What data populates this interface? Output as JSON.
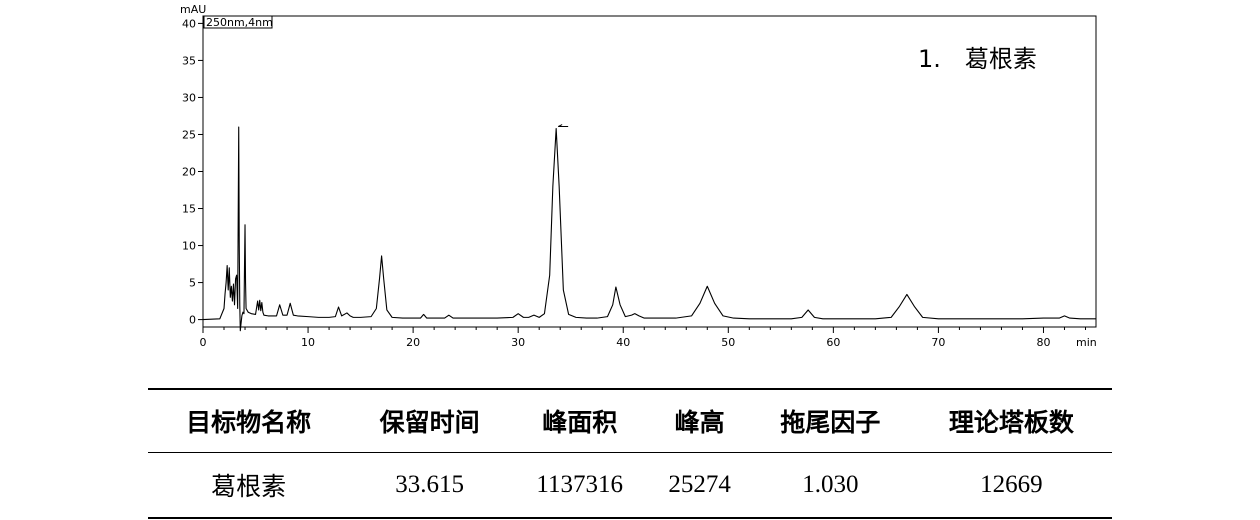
{
  "chart_data": {
    "type": "line",
    "y_unit": "mAU",
    "x_unit": "min",
    "channel": "250nm,4nm",
    "annotation": "1.　葛根素",
    "xlim": [
      0,
      85
    ],
    "ylim": [
      -1,
      41
    ],
    "x_ticks": [
      0,
      10,
      20,
      30,
      40,
      50,
      60,
      70,
      80
    ],
    "y_ticks": [
      0,
      5,
      10,
      15,
      20,
      25,
      30,
      35,
      40
    ],
    "peak_marker_x": 33.615,
    "series": [
      {
        "color": "#000000",
        "x": [
          0,
          1.6,
          2.0,
          2.1,
          2.2,
          2.3,
          2.4,
          2.5,
          2.6,
          2.7,
          2.8,
          2.9,
          3.0,
          3.1,
          3.2,
          3.3,
          3.4,
          3.45,
          3.5,
          3.55,
          3.6,
          3.7,
          3.8,
          3.9,
          3.95,
          4.0,
          4.05,
          4.1,
          4.3,
          4.6,
          5.0,
          5.2,
          5.3,
          5.4,
          5.5,
          5.6,
          5.7,
          5.8,
          6.2,
          7.0,
          7.3,
          7.6,
          8.0,
          8.3,
          8.6,
          9.0,
          10.0,
          11.0,
          12.0,
          12.6,
          12.9,
          13.2,
          13.7,
          14.0,
          14.3,
          15.0,
          16.0,
          16.5,
          16.8,
          17.0,
          17.2,
          17.5,
          18.0,
          19.0,
          20.0,
          20.7,
          21.0,
          21.3,
          22.0,
          23.0,
          23.4,
          23.8,
          24.5,
          26.0,
          28.0,
          29.5,
          30.0,
          30.5,
          31.0,
          31.5,
          32.0,
          32.5,
          33.0,
          33.3,
          33.615,
          33.9,
          34.3,
          34.8,
          35.5,
          36.5,
          37.5,
          38.5,
          39.0,
          39.3,
          39.7,
          40.2,
          40.8,
          41.1,
          41.5,
          42.0,
          43.0,
          45.0,
          46.5,
          47.3,
          48.0,
          48.7,
          49.5,
          50.5,
          52.0,
          54.0,
          56.0,
          57.0,
          57.6,
          58.2,
          59.0,
          60.0,
          62.0,
          64.0,
          65.5,
          66.3,
          67.0,
          67.7,
          68.5,
          70.0,
          72.0,
          75.0,
          78.0,
          80.0,
          81.5,
          82.0,
          82.5,
          83.5,
          85.0
        ],
        "y": [
          0.0,
          0.1,
          1.5,
          3.5,
          5.0,
          7.3,
          4.0,
          7.0,
          3.0,
          4.5,
          2.5,
          4.8,
          2.0,
          5.5,
          6.0,
          1.5,
          26.0,
          10.0,
          2.0,
          -1.5,
          -0.8,
          0.5,
          1.0,
          0.8,
          7.0,
          12.8,
          5.0,
          1.5,
          1.0,
          0.8,
          0.7,
          2.5,
          1.3,
          2.6,
          1.2,
          2.3,
          1.0,
          0.6,
          0.5,
          0.5,
          2.0,
          0.6,
          0.6,
          2.2,
          0.6,
          0.5,
          0.4,
          0.3,
          0.3,
          0.4,
          1.7,
          0.5,
          0.9,
          0.5,
          0.3,
          0.3,
          0.4,
          1.5,
          5.5,
          8.6,
          5.5,
          1.3,
          0.3,
          0.2,
          0.2,
          0.2,
          0.7,
          0.2,
          0.2,
          0.2,
          0.6,
          0.2,
          0.2,
          0.2,
          0.2,
          0.3,
          0.8,
          0.3,
          0.3,
          0.6,
          0.3,
          0.8,
          6.0,
          18.0,
          25.8,
          18.0,
          4.0,
          0.7,
          0.3,
          0.2,
          0.2,
          0.4,
          2.0,
          4.4,
          2.0,
          0.4,
          0.6,
          0.8,
          0.5,
          0.2,
          0.2,
          0.2,
          0.5,
          2.2,
          4.5,
          2.2,
          0.5,
          0.2,
          0.1,
          0.1,
          0.1,
          0.3,
          1.3,
          0.3,
          0.1,
          0.1,
          0.1,
          0.1,
          0.3,
          1.8,
          3.4,
          1.8,
          0.3,
          0.1,
          0.1,
          0.1,
          0.1,
          0.2,
          0.2,
          0.5,
          0.2,
          0.1,
          0.1
        ]
      }
    ]
  },
  "table": {
    "headers": [
      "目标物名称",
      "保留时间",
      "峰面积",
      "峰高",
      "拖尾因子",
      "理论塔板数"
    ],
    "rows": [
      [
        "葛根素",
        "33.615",
        "1137316",
        "25274",
        "1.030",
        "12669"
      ]
    ]
  }
}
